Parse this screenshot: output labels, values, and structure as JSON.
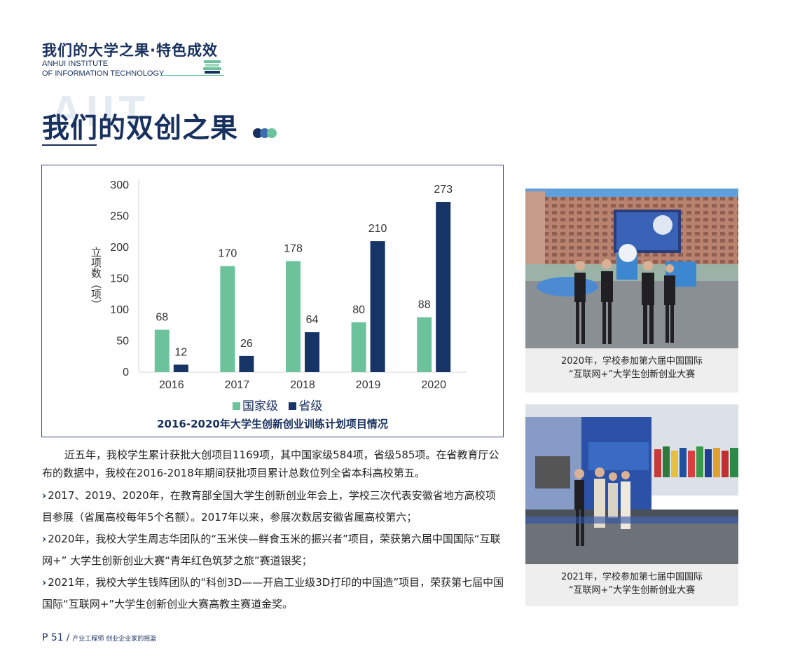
{
  "header": {
    "kicker": "我们的大学之果·特色成效",
    "institute_line1": "ANHUI INSTITUTE",
    "institute_line2": "OF INFORMATION TECHNOLOGY"
  },
  "title": {
    "watermark": "AIIT",
    "text": "我们的双创之果"
  },
  "colors": {
    "navy": "#17305e",
    "national_green": "#6cc39b",
    "province_navy": "#163466"
  },
  "chart_data": {
    "type": "bar",
    "title": "2016-2020年大学生创新创业训练计划项目情况",
    "ylabel": "立项数（项）",
    "xlabel": "",
    "categories": [
      "2016",
      "2017",
      "2018",
      "2019",
      "2020"
    ],
    "series": [
      {
        "name": "国家级",
        "values": [
          68,
          170,
          178,
          80,
          88
        ],
        "color": "#6cc39b"
      },
      {
        "name": "省级",
        "values": [
          12,
          26,
          64,
          210,
          273
        ],
        "color": "#163466"
      }
    ],
    "ylim": [
      0,
      300
    ],
    "yticks": [
      0,
      50,
      100,
      150,
      200,
      250,
      300
    ],
    "grid": false,
    "legend_position": "bottom"
  },
  "body": {
    "paragraph": "近五年，我校学生累计获批大创项目1169项，其中国家级584项，省级585项。在省教育厅公布的数据中，我校在2016-2018年期间获批项目累计总数位列全省本科高校第五。",
    "bullet_marker": "›",
    "bullets": [
      "2017、2019、2020年，在教育部全国大学生创新创业年会上，学校三次代表安徽省地方高校项目参展（省属高校每年5个名额）。2017年以来，参展次数居安徽省属高校第六；",
      "2020年，我校大学生周志华团队的“玉米侠—鲜食玉米的振兴者”项目，荣获第六届中国国际“互联网+” 大学生创新创业大赛“青年红色筑梦之旅”赛道银奖；",
      "2021年，我校大学生钱阵团队的“科创3D——开启工业级3D打印的中国造”项目，荣获第七届中国国际“互联网+”大学生创新创业大赛高教主赛道金奖。"
    ]
  },
  "photos": [
    {
      "caption_line1": "2020年，学校参加第六届中国国际",
      "caption_line2": "“互联网+”大学生创新创业大赛"
    },
    {
      "caption_line1": "2021年，学校参加第七届中国国际",
      "caption_line2": "“互联网+”大学生创新创业大赛"
    }
  ],
  "footer": {
    "page": "P 51",
    "sep": "/",
    "subtitle": "产业工程师 创业企业家的摇篮"
  }
}
